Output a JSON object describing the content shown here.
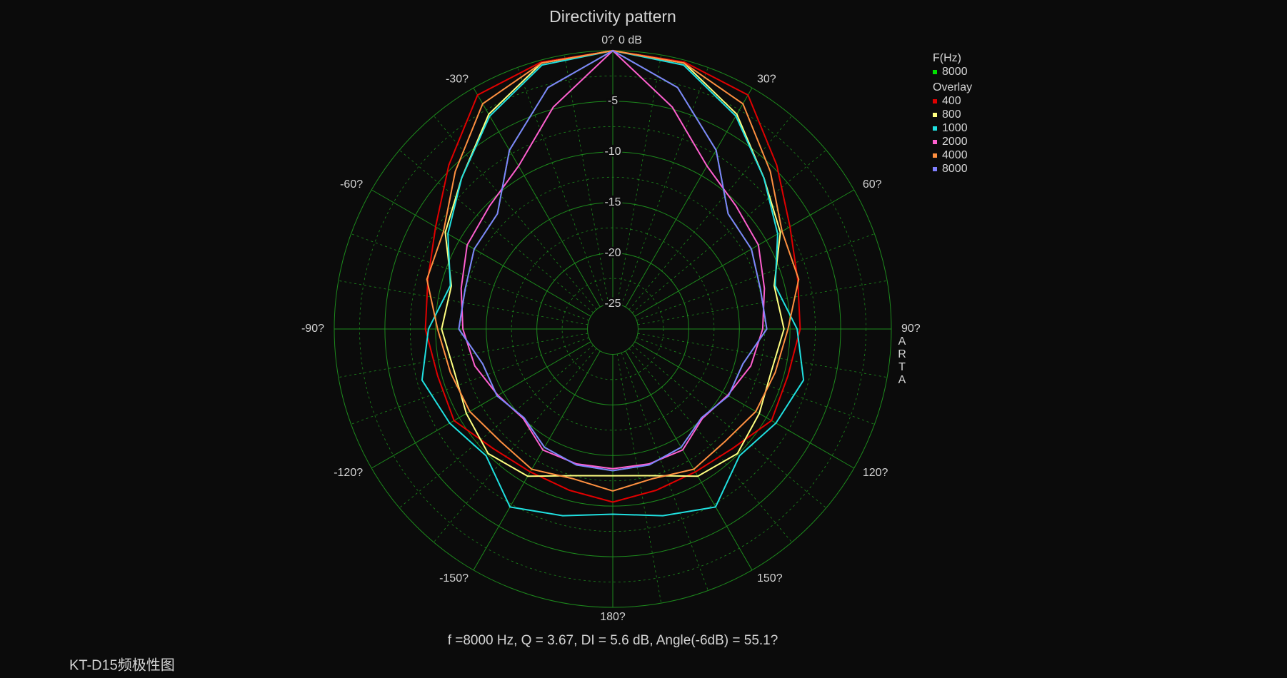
{
  "chart_data": {
    "type": "polar",
    "title": "Directivity pattern",
    "annotation": "f =8000 Hz,  Q =  3.67,  DI =   5.6 dB, Angle(-6dB) =  55.1?",
    "watermark": [
      "A",
      "R",
      "T",
      "A"
    ],
    "x": [
      -180,
      -165,
      -150,
      -135,
      -120,
      -105,
      -90,
      -75,
      -60,
      -45,
      -30,
      -15,
      0,
      15,
      30,
      45,
      60,
      75,
      90,
      105,
      120,
      135,
      150,
      165,
      180
    ],
    "rlim": [
      -27.5,
      0
    ],
    "rticks": [
      -25,
      -20,
      -15,
      -10,
      -5,
      {
        "value": 0,
        "label": "0 dB"
      }
    ],
    "aticks": [
      {
        "value": 0,
        "label": "0?"
      },
      {
        "value": 30,
        "label": "30?"
      },
      {
        "value": 60,
        "label": "60?"
      },
      {
        "value": 90,
        "label": "90?"
      },
      {
        "value": 120,
        "label": "120?"
      },
      {
        "value": 150,
        "label": "150?"
      },
      {
        "value": 180,
        "label": "180?"
      },
      {
        "value": -150,
        "label": "-150?"
      },
      {
        "value": -120,
        "label": "-120?"
      },
      {
        "value": -90,
        "label": "-90?"
      },
      {
        "value": -60,
        "label": "-60?"
      },
      {
        "value": -30,
        "label": "-30?"
      }
    ],
    "grid": true,
    "series_groups": [
      {
        "name": "F(Hz)",
        "series": [
          {
            "name": "8000",
            "color": "#00e000",
            "values": [
              -13.5,
              -13.6,
              -14,
              -15.1,
              -14.3,
              -14.2,
              -12.3,
              -12.4,
              -11.7,
              -11.4,
              -7.1,
              -2.8,
              0,
              -2.8,
              -7.1,
              -11.4,
              -11.7,
              -12.4,
              -12.3,
              -14.2,
              -14.3,
              -15.1,
              -14,
              -13.6,
              -13.5
            ]
          }
        ]
      },
      {
        "name": "Overlay",
        "series": [
          {
            "name": "400",
            "color": "#e00000",
            "values": [
              -10.4,
              -11,
              -11.2,
              -10.8,
              -9.4,
              -9.6,
              -9,
              -8.6,
              -7.3,
              -4.6,
              -0.8,
              -0.2,
              0,
              -0.2,
              -0.8,
              -4.6,
              -7.3,
              -8.6,
              -9,
              -9.6,
              -9.4,
              -10.8,
              -11.2,
              -11,
              -10.4
            ]
          },
          {
            "name": "800",
            "color": "#ffff80",
            "values": [
              -13,
              -12.5,
              -10.7,
              -10.1,
              -10.8,
              -11.3,
              -10.6,
              -11,
              -8.4,
              -6.4,
              -3,
              -0.3,
              0,
              -0.3,
              -3,
              -6.4,
              -8.4,
              -11,
              -10.6,
              -11.3,
              -10.8,
              -10.1,
              -10.7,
              -12.5,
              -13
            ]
          },
          {
            "name": "1000",
            "color": "#20e0e0",
            "values": [
              -9.2,
              -8.4,
              -7.2,
              -9.8,
              -8.9,
              -8,
              -9.3,
              -10.9,
              -8.7,
              -6.4,
              -3.2,
              -0.5,
              0,
              -0.5,
              -3.2,
              -6.4,
              -8.7,
              -10.9,
              -9.3,
              -8,
              -8.9,
              -9.8,
              -7.2,
              -8.4,
              -9.2
            ]
          },
          {
            "name": "2000",
            "color": "#ff60d0",
            "values": [
              -13.7,
              -13.7,
              -13.7,
              -15,
              -14.4,
              -13.4,
              -12.7,
              -12,
              -10.9,
              -10.3,
              -8.9,
              -4.8,
              0,
              -4.8,
              -8.9,
              -10.3,
              -10.9,
              -12,
              -12.7,
              -13.4,
              -14.4,
              -15,
              -13.7,
              -13.7,
              -13.7
            ]
          },
          {
            "name": "4000",
            "color": "#ff9040",
            "values": [
              -11.5,
              -12.2,
              -11.5,
              -11.8,
              -11.2,
              -10.9,
              -10.2,
              -8.5,
              -8.2,
              -5.5,
              -1.8,
              -0.3,
              0,
              -0.3,
              -1.8,
              -5.5,
              -8.2,
              -8.5,
              -10.2,
              -10.9,
              -11.2,
              -11.8,
              -11.5,
              -12.2,
              -11.5
            ]
          },
          {
            "name": "8000",
            "color": "#8080ff",
            "values": [
              -13.5,
              -13.6,
              -14,
              -15.1,
              -14.3,
              -14.2,
              -12.3,
              -12.4,
              -11.7,
              -11.4,
              -7.1,
              -2.8,
              0,
              -2.8,
              -7.1,
              -11.4,
              -11.7,
              -12.4,
              -12.3,
              -14.2,
              -14.3,
              -15.1,
              -14,
              -13.6,
              -13.5
            ]
          }
        ]
      }
    ]
  },
  "page_label": "KT-D15频极性图"
}
